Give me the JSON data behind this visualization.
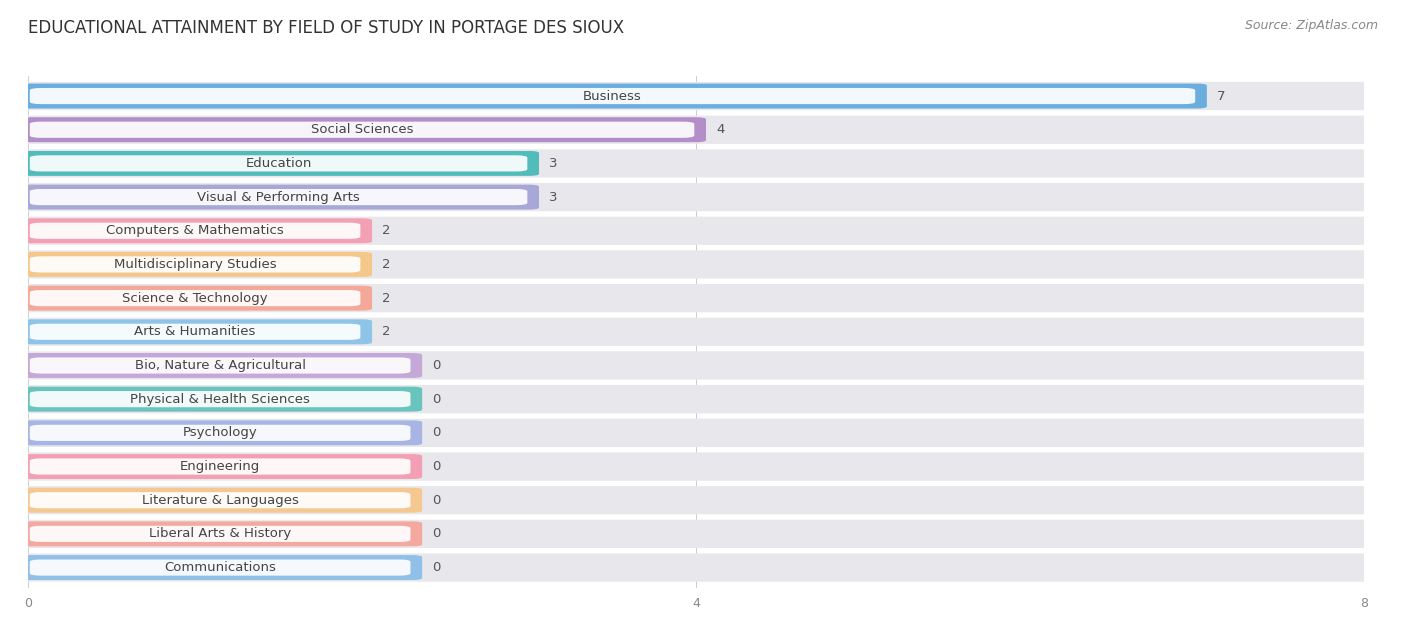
{
  "title": "EDUCATIONAL ATTAINMENT BY FIELD OF STUDY IN PORTAGE DES SIOUX",
  "source": "Source: ZipAtlas.com",
  "categories": [
    "Business",
    "Social Sciences",
    "Education",
    "Visual & Performing Arts",
    "Computers & Mathematics",
    "Multidisciplinary Studies",
    "Science & Technology",
    "Arts & Humanities",
    "Bio, Nature & Agricultural",
    "Physical & Health Sciences",
    "Psychology",
    "Engineering",
    "Literature & Languages",
    "Liberal Arts & History",
    "Communications"
  ],
  "values": [
    7,
    4,
    3,
    3,
    2,
    2,
    2,
    2,
    0,
    0,
    0,
    0,
    0,
    0,
    0
  ],
  "bar_colors": [
    "#6aaede",
    "#b48ec8",
    "#52bcbc",
    "#a8a8d8",
    "#f4a0b4",
    "#f4c88a",
    "#f4a898",
    "#8ec4e8",
    "#c4a8d8",
    "#68c4bc",
    "#a8b4e4",
    "#f4a0b4",
    "#f4c890",
    "#f4a8a0",
    "#90c0e8"
  ],
  "bg_bar_color": "#e8e8ec",
  "row_bg_even": "#f0f0f4",
  "row_bg_odd": "#f8f8fb",
  "label_bg_color": "#ffffff",
  "label_text_color": "#444444",
  "value_text_color": "#555555",
  "xlim": [
    0,
    8
  ],
  "xticks": [
    0,
    4,
    8
  ],
  "bar_height": 0.62,
  "bg_bar_height": 0.72,
  "title_fontsize": 12,
  "label_fontsize": 9.5,
  "value_fontsize": 9.5,
  "tick_fontsize": 9
}
